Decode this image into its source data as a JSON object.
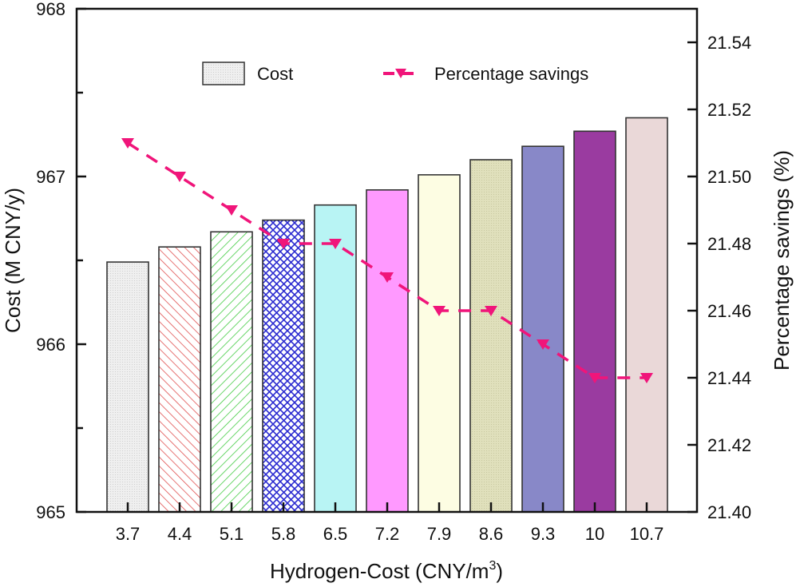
{
  "chart_data": {
    "type": "bar",
    "title": "",
    "xlabel": "Hydrogen-Cost (CNY/m",
    "xlabel_superscript": "3",
    "xlabel_suffix": ")",
    "ylabel": "Cost (M CNY/y)",
    "y2label": "Percentage savings (%)",
    "categories": [
      "3.7",
      "4.4",
      "5.1",
      "5.8",
      "6.5",
      "7.2",
      "7.9",
      "8.6",
      "9.3",
      "10",
      "10.7"
    ],
    "ylim": [
      965,
      968
    ],
    "y_ticks": [
      "965",
      "966",
      "967",
      "968"
    ],
    "y2lim": [
      21.4,
      21.55
    ],
    "y2_ticks": [
      "21.40",
      "21.42",
      "21.44",
      "21.46",
      "21.48",
      "21.50",
      "21.52",
      "21.54"
    ],
    "grid": false,
    "legend_position": "top",
    "series": [
      {
        "name": "Cost",
        "type": "bar",
        "axis": "left",
        "values": [
          966.49,
          966.58,
          966.67,
          966.74,
          966.83,
          966.92,
          967.01,
          967.1,
          967.18,
          967.27,
          967.35
        ],
        "colors": [
          "#e8e8e8",
          "#ffffff",
          "#ffffff",
          "#ffffff",
          "#b8f4f4",
          "#ff99ff",
          "#fdfde3",
          "#e0e0bc",
          "#8888c8",
          "#9a3ba0",
          "#ead8d8"
        ],
        "patterns": [
          "dots",
          "diag-red",
          "diag-green",
          "crosshatch-blue",
          "dots",
          "solid",
          "dots",
          "grid",
          "dots",
          "solid",
          "dots"
        ]
      },
      {
        "name": "Percentage savings",
        "type": "line",
        "axis": "right",
        "color": "#f0157a",
        "marker": "down-triangle",
        "line_style": "dashed",
        "values": [
          21.51,
          21.5,
          21.49,
          21.48,
          21.48,
          21.47,
          21.46,
          21.46,
          21.45,
          21.44,
          21.44
        ]
      }
    ]
  }
}
